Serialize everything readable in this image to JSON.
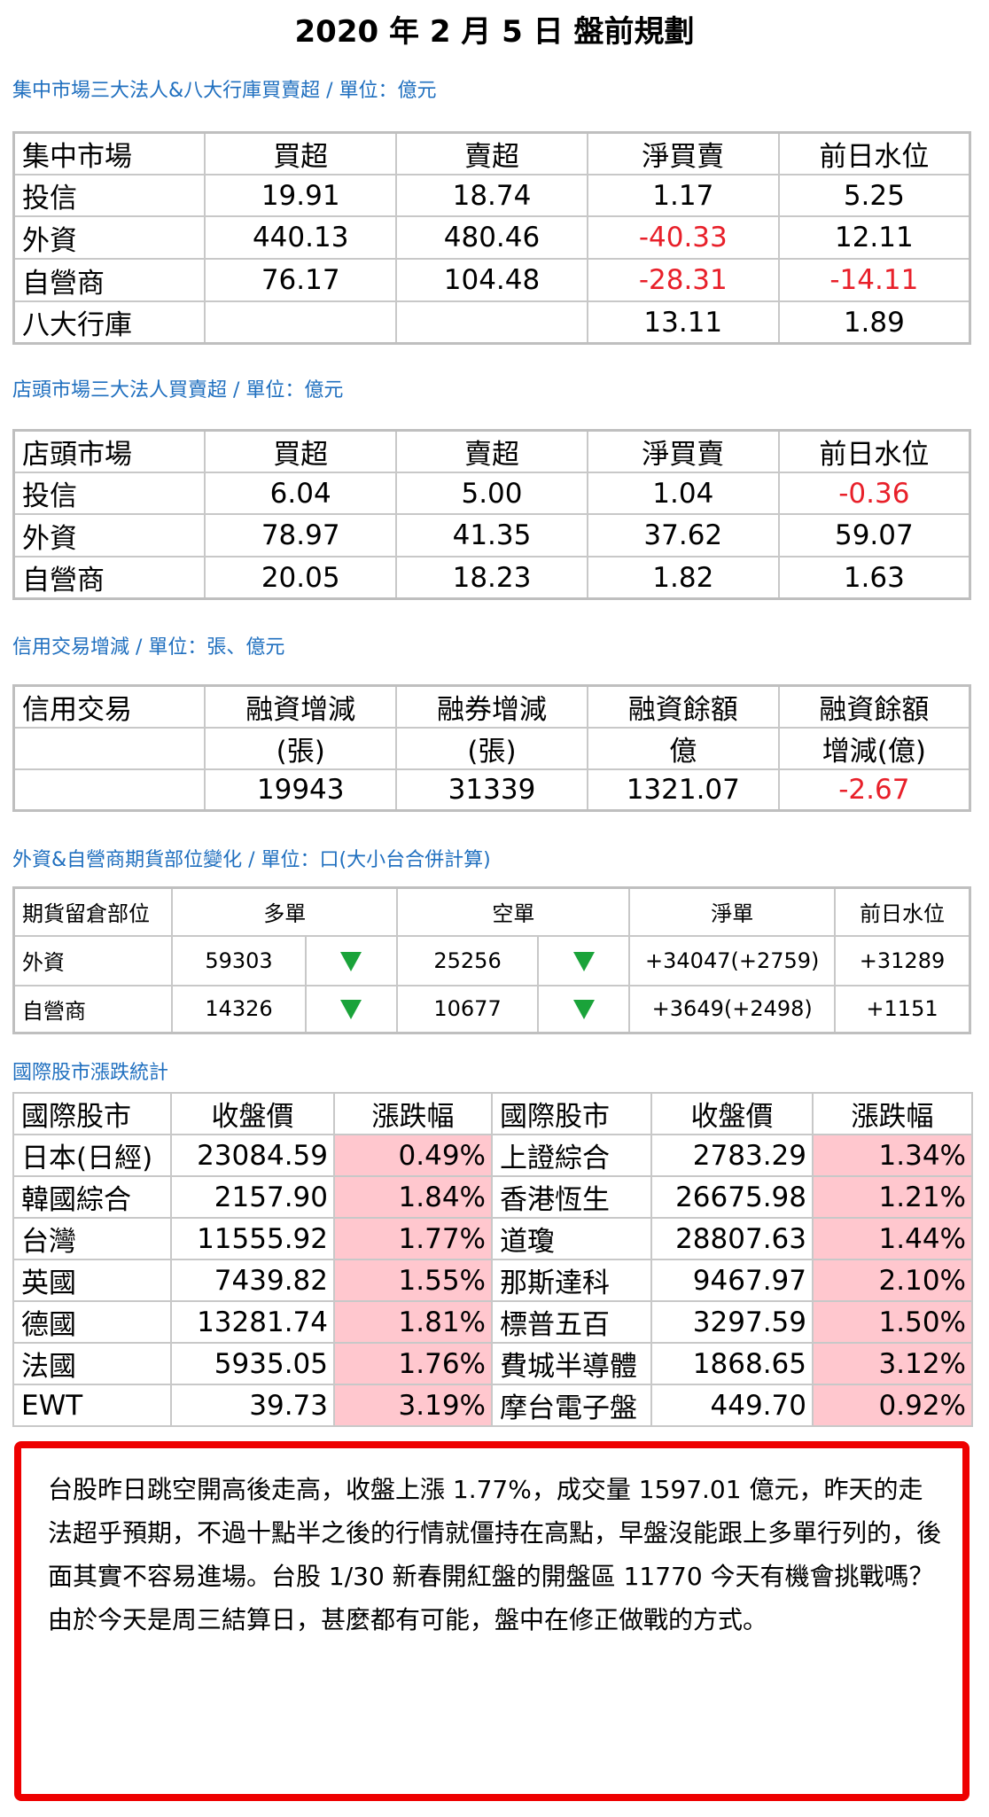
{
  "title": "2020 年 2 月 5 日  盤前規劃",
  "section1": {
    "heading": "集中市場三大法人&八大行庫買賣超 / 單位：億元",
    "header": [
      "集中市場",
      "買超",
      "賣超",
      "淨買賣",
      "前日水位"
    ],
    "rows": [
      [
        "投信",
        "19.91",
        "18.74",
        "1.17",
        "5.25"
      ],
      [
        "外資",
        "440.13",
        "480.46",
        "-40.33",
        "12.11"
      ],
      [
        "自營商",
        "76.17",
        "104.48",
        "-28.31",
        "-14.11"
      ],
      [
        "八大行庫",
        "",
        "",
        "13.11",
        "1.89"
      ]
    ]
  },
  "section2": {
    "heading": "店頭市場三大法人買賣超 / 單位：億元",
    "header": [
      "店頭市場",
      "買超",
      "賣超",
      "淨買賣",
      "前日水位"
    ],
    "rows": [
      [
        "投信",
        "6.04",
        "5.00",
        "1.04",
        "-0.36"
      ],
      [
        "外資",
        "78.97",
        "41.35",
        "37.62",
        "59.07"
      ],
      [
        "自營商",
        "20.05",
        "18.23",
        "1.82",
        "1.63"
      ]
    ]
  },
  "section3": {
    "heading": "信用交易增減 / 單位：張、億元",
    "header1": [
      "信用交易",
      "融資增減",
      "融券增減",
      "融資餘額",
      "融資餘額"
    ],
    "header2": [
      "",
      "(張)",
      "(張)",
      "億",
      "增減(億)"
    ],
    "row": [
      "",
      "19943",
      "31339",
      "1321.07",
      "-2.67"
    ]
  },
  "section4": {
    "heading": "外資&自營商期貨部位變化 / 單位：口(大小台合併計算)",
    "header": [
      "期貨留倉部位",
      "多單",
      "空單",
      "淨單",
      "前日水位"
    ],
    "rows": [
      {
        "name": "外資",
        "long": "59303",
        "long_dir": "down",
        "short": "25256",
        "short_dir": "down",
        "net": "+34047(+2759)",
        "prev": "+31289"
      },
      {
        "name": "自營商",
        "long": "14326",
        "long_dir": "down",
        "short": "10677",
        "short_dir": "down",
        "net": "+3649(+2498)",
        "prev": "+1151"
      }
    ],
    "arrow_color": "#1aa33a"
  },
  "section5": {
    "heading": "國際股市漲跌統計",
    "header": [
      "國際股市",
      "收盤價",
      "漲跌幅",
      "國際股市",
      "收盤價",
      "漲跌幅"
    ],
    "rows": [
      [
        "日本(日經)",
        "23084.59",
        "0.49%",
        "上證綜合",
        "2783.29",
        "1.34%"
      ],
      [
        "韓國綜合",
        "2157.90",
        "1.84%",
        "香港恆生",
        "26675.98",
        "1.21%"
      ],
      [
        "台灣",
        "11555.92",
        "1.77%",
        "道瓊",
        "28807.63",
        "1.44%"
      ],
      [
        "英國",
        "7439.82",
        "1.55%",
        "那斯達科",
        "9467.97",
        "2.10%"
      ],
      [
        "德國",
        "13281.74",
        "1.81%",
        "標普五百",
        "3297.59",
        "1.50%"
      ],
      [
        "法國",
        "5935.05",
        "1.76%",
        "費城半導體",
        "1868.65",
        "3.12%"
      ],
      [
        "EWT",
        "39.73",
        "3.19%",
        "摩台電子盤",
        "449.70",
        "0.92%"
      ]
    ]
  },
  "note": {
    "text": "台股昨日跳空開高後走高，收盤上漲 1.77%，成交量 1597.01 億元，昨天的走法超乎預期，不過十點半之後的行情就僵持在高點，早盤沒能跟上多單行列的，後面其實不容易進場。台股 1/30 新春開紅盤的開盤區 11770 今天有機會挑戰嗎？由於今天是周三結算日，甚麼都有可能，盤中在修正做戰的方式。"
  },
  "colors": {
    "section_heading": "#1f6fbf",
    "negative": "#e8202a",
    "highlight": "#ffc7ce",
    "note_border": "#ee0000"
  }
}
